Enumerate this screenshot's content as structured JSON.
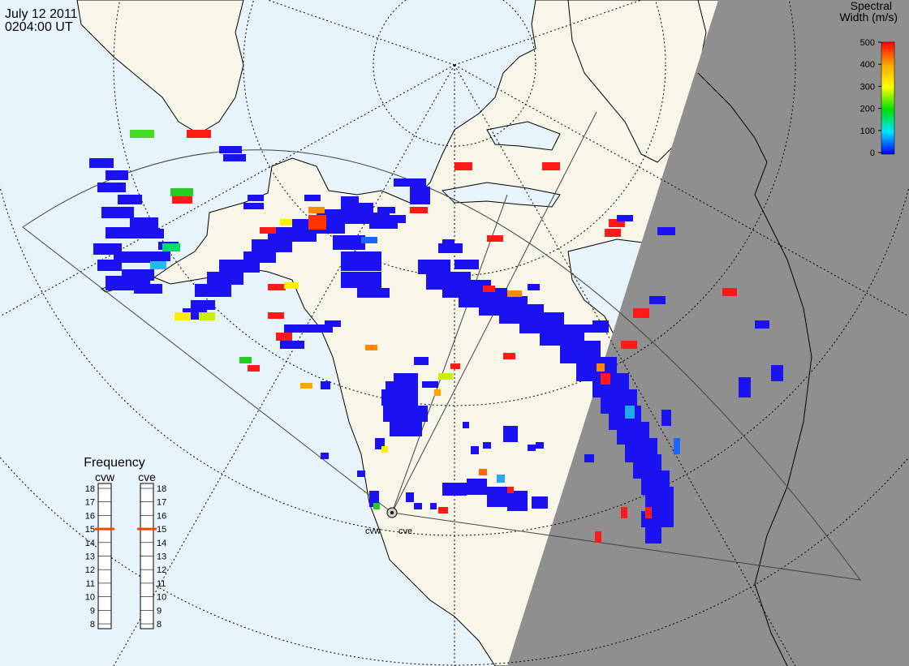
{
  "header": {
    "date": "July 12 2011",
    "time": "0204:00 UT"
  },
  "legend": {
    "title_line1": "Spectral",
    "title_line2": "Width (m/s)",
    "ticks": [
      "500",
      "400",
      "300",
      "200",
      "100",
      "0"
    ],
    "colors": [
      "#ff0000",
      "#ffa500",
      "#ffff00",
      "#00e000",
      "#00e5ff",
      "#0000ff"
    ]
  },
  "radars": {
    "west": "cvw",
    "east": "cve"
  },
  "frequency": {
    "title": "Frequency",
    "col_west": "cvw",
    "col_east": "cve",
    "scale": [
      "18",
      "17",
      "16",
      "15",
      "14",
      "13",
      "12",
      "11",
      "10",
      "9",
      "8"
    ],
    "selected_west": 15,
    "selected_east": 15,
    "marker_color": "#ff4400"
  },
  "map_colors": {
    "ocean": "#e8f4fb",
    "land": "#f7f6e8",
    "night": "#8f8f8f",
    "echo_low": "#1a12f0"
  }
}
